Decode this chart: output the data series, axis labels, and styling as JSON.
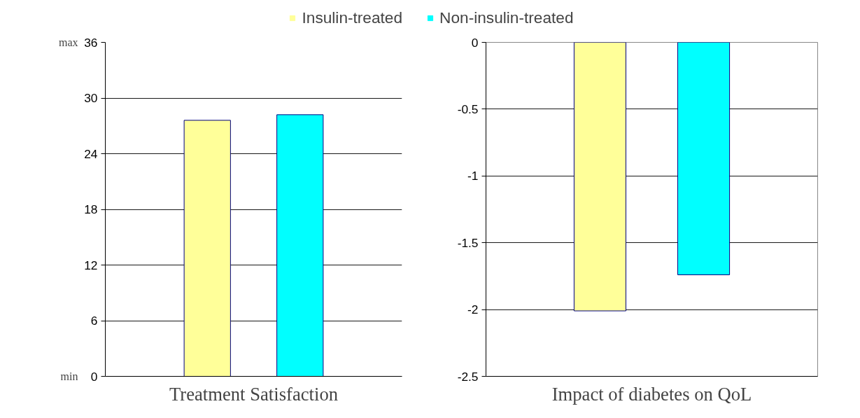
{
  "chart_data": [
    {
      "type": "bar",
      "categories": [
        null
      ],
      "xlabel": "Treatment Satisfaction",
      "legend": "top",
      "grid": "y",
      "ylim": [
        0,
        36
      ],
      "yticks": [
        0,
        6,
        12,
        18,
        24,
        30,
        36
      ],
      "annotations": [
        "max",
        "min"
      ],
      "series": [
        {
          "name": "Insulin-treated",
          "color": "#ffff99",
          "values": [
            27.6
          ]
        },
        {
          "name": "Non-insulin-treated",
          "color": "#00ffff",
          "values": [
            28.2
          ]
        }
      ]
    },
    {
      "type": "bar",
      "categories": [
        null
      ],
      "xlabel": "Impact of diabetes on QoL",
      "grid": "y",
      "ylim": [
        -2.5,
        0
      ],
      "yticks": [
        -2.5,
        -2,
        -1.5,
        -1,
        -0.5,
        0
      ],
      "series": [
        {
          "color": "#ffff99",
          "values": [
            -2.01
          ]
        },
        {
          "color": "#00ffff",
          "values": [
            -1.74
          ]
        }
      ]
    }
  ]
}
